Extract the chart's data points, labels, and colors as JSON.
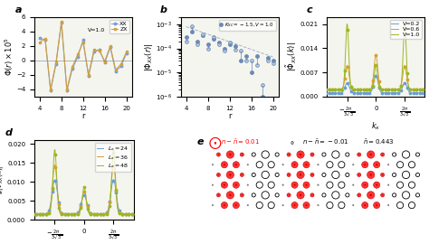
{
  "panel_a": {
    "r": [
      4,
      5,
      6,
      7,
      8,
      9,
      10,
      11,
      12,
      13,
      14,
      15,
      16,
      17,
      18,
      19,
      20
    ],
    "XX": [
      3.1,
      2.8,
      -4.2,
      -0.5,
      5.2,
      -4.2,
      -1.2,
      0.5,
      2.8,
      -2.2,
      1.2,
      1.5,
      -0.3,
      1.8,
      -1.5,
      -0.8,
      1.0
    ],
    "ZX": [
      2.5,
      3.0,
      -4.0,
      -0.3,
      5.4,
      -4.0,
      -0.9,
      0.8,
      2.5,
      -2.0,
      1.5,
      1.3,
      -0.1,
      2.0,
      -1.3,
      -0.5,
      1.2
    ],
    "color_XX": "#7a9fd4",
    "color_ZX": "#d4a040",
    "ylabel": "$\\Phi(r)\\times10^5$",
    "xlabel": "r",
    "label_V": "V=1.0",
    "xlim": [
      3,
      21
    ],
    "ylim": [
      -5,
      6
    ],
    "xticks": [
      4,
      8,
      12,
      16,
      20
    ]
  },
  "panel_b": {
    "r_filled": [
      4,
      5,
      6,
      7,
      8,
      9,
      10,
      11,
      12,
      13,
      14,
      15,
      16,
      17,
      18,
      19,
      20
    ],
    "vals_filled": [
      0.0003,
      0.0005,
      0.0002,
      0.00035,
      0.00015,
      0.00025,
      0.00018,
      0.0001,
      0.00015,
      0.00012,
      3e-05,
      5e-05,
      1e-05,
      5e-05,
      1e-06,
      4e-05,
      3e-05
    ],
    "r_open": [
      4,
      5,
      6,
      7,
      8,
      9,
      10,
      11,
      12,
      13,
      14,
      15,
      16,
      17,
      18,
      19,
      20
    ],
    "vals_open": [
      0.0002,
      0.0008,
      0.00015,
      0.0004,
      0.0001,
      0.0003,
      0.00015,
      8e-05,
      0.00018,
      9e-05,
      8e-05,
      3e-05,
      3e-05,
      2e-05,
      3e-06,
      3e-05,
      2.5e-05
    ],
    "color": "#6a8ab5",
    "ylabel": "$|\\Phi_{XX}(r)|$",
    "xlabel": "r",
    "label": "$K_{SC}=-1.5, V=1.0$",
    "xlim": [
      3,
      21
    ],
    "xticks": [
      4,
      8,
      12,
      16,
      20
    ]
  },
  "panel_c": {
    "color_V02": "#6a9fd4",
    "color_V06": "#d4a030",
    "color_V10": "#9ab820",
    "ylabel": "$|\\tilde{\\Phi}_{XX}(k)|$",
    "xlabel": "$k_x$",
    "yticks": [
      0,
      0.007,
      0.014,
      0.021
    ],
    "ymax": 0.023,
    "xtick_labels": [
      "$-\\frac{2\\pi}{3\\sqrt{3}}$",
      "0",
      "$\\frac{2\\pi}{3\\sqrt{3}}$"
    ],
    "xtick_vals": [
      -1.2092,
      0.0,
      1.2092
    ]
  },
  "panel_d": {
    "color_L24": "#6a9fd4",
    "color_L36": "#d4a030",
    "color_L48": "#9ab820",
    "ylabel": "$g|\\tilde{\\Phi}_{XX}(k)|$",
    "xlabel": "$k_x$",
    "label_L24": "$L_x=24$",
    "label_L36": "$L_x=36$",
    "label_L48": "$L_x=48$",
    "xtick_labels": [
      "$-\\frac{2\\pi}{3\\sqrt{3}}$",
      "0",
      "$\\frac{2\\pi}{3\\sqrt{3}}$"
    ],
    "xtick_vals": [
      -1.2092,
      0.0,
      1.2092
    ],
    "ymax": 0.021
  },
  "panel_e": {
    "n_bar": 0.443,
    "nx": 18,
    "ny": 6
  },
  "tick_fontsize": 5,
  "label_fontsize": 6
}
